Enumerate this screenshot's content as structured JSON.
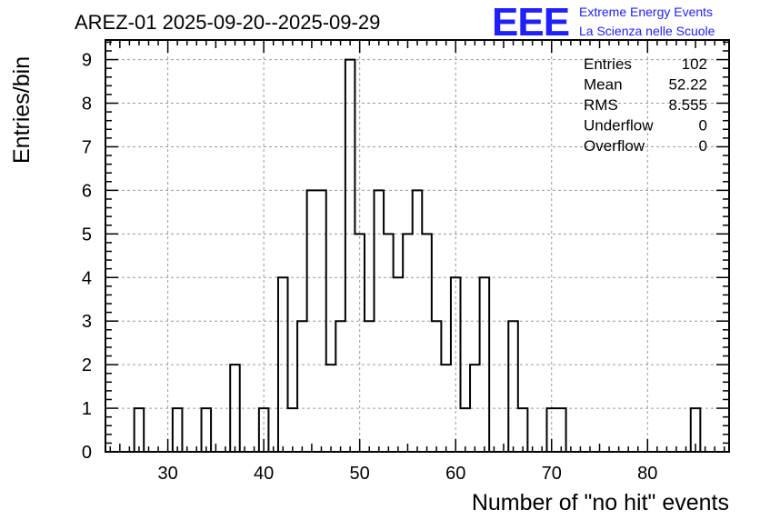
{
  "title": "AREZ-01 2025-09-20--2025-09-29",
  "logo": {
    "mark": "EEE",
    "line1": "Extreme Energy Events",
    "line2": "La Scienza nelle Scuole",
    "color": "#1f1fff"
  },
  "stats": [
    {
      "label": "Entries",
      "value": "102"
    },
    {
      "label": "Mean",
      "value": "52.22"
    },
    {
      "label": "RMS",
      "value": "8.555"
    },
    {
      "label": "Underflow",
      "value": "0"
    },
    {
      "label": "Overflow",
      "value": "0"
    }
  ],
  "chart_data": {
    "type": "bar",
    "style": "step-histogram",
    "xlabel": "Number of \"no hit\" events",
    "ylabel": "Entries/bin",
    "xlim": [
      23.5,
      88.5
    ],
    "ylim": [
      0,
      9.45
    ],
    "bin_width": 1,
    "grid": true,
    "xticks": [
      30,
      40,
      50,
      60,
      70,
      80
    ],
    "yticks": [
      0,
      1,
      2,
      3,
      4,
      5,
      6,
      7,
      8,
      9
    ],
    "bins": [
      {
        "x": 27,
        "y": 1
      },
      {
        "x": 31,
        "y": 1
      },
      {
        "x": 34,
        "y": 1
      },
      {
        "x": 37,
        "y": 2
      },
      {
        "x": 40,
        "y": 1
      },
      {
        "x": 42,
        "y": 4
      },
      {
        "x": 43,
        "y": 1
      },
      {
        "x": 44,
        "y": 3
      },
      {
        "x": 45,
        "y": 6
      },
      {
        "x": 46,
        "y": 6
      },
      {
        "x": 47,
        "y": 2
      },
      {
        "x": 48,
        "y": 3
      },
      {
        "x": 49,
        "y": 9
      },
      {
        "x": 50,
        "y": 5
      },
      {
        "x": 51,
        "y": 3
      },
      {
        "x": 52,
        "y": 6
      },
      {
        "x": 53,
        "y": 5
      },
      {
        "x": 54,
        "y": 4
      },
      {
        "x": 55,
        "y": 5
      },
      {
        "x": 56,
        "y": 6
      },
      {
        "x": 57,
        "y": 5
      },
      {
        "x": 58,
        "y": 3
      },
      {
        "x": 59,
        "y": 2
      },
      {
        "x": 60,
        "y": 4
      },
      {
        "x": 61,
        "y": 1
      },
      {
        "x": 62,
        "y": 2
      },
      {
        "x": 63,
        "y": 4
      },
      {
        "x": 66,
        "y": 3
      },
      {
        "x": 67,
        "y": 1
      },
      {
        "x": 70,
        "y": 1
      },
      {
        "x": 71,
        "y": 1
      },
      {
        "x": 85,
        "y": 1
      }
    ]
  }
}
